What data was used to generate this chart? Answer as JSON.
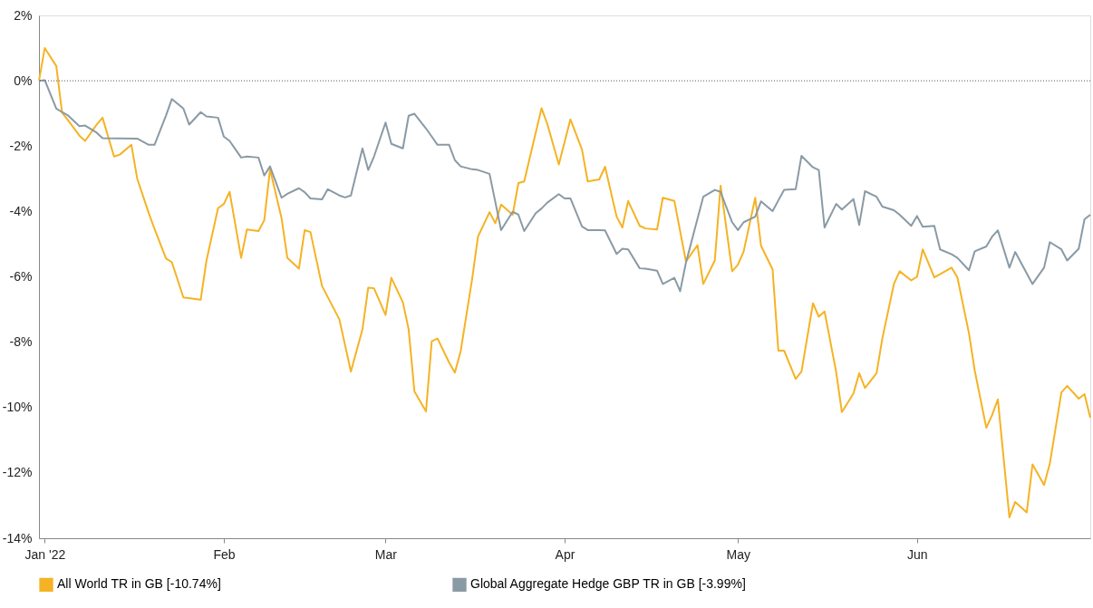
{
  "chart_data": {
    "type": "line",
    "legend": "bottom",
    "grid": false,
    "line_style": "solid",
    "marker": "none",
    "xlim": [
      "2021-12-31",
      "2022-07-01"
    ],
    "xticks": [
      {
        "value": "2022-01-01",
        "label": "Jan '22"
      },
      {
        "value": "2022-02-01",
        "label": "Feb"
      },
      {
        "value": "2022-03-01",
        "label": "Mar"
      },
      {
        "value": "2022-04-01",
        "label": "Apr"
      },
      {
        "value": "2022-05-01",
        "label": "May"
      },
      {
        "value": "2022-06-01",
        "label": "Jun"
      }
    ],
    "ylim": [
      -14,
      2
    ],
    "yticks": [
      {
        "value": 2,
        "label": "2%"
      },
      {
        "value": 0,
        "label": "0%"
      },
      {
        "value": -2,
        "label": "-2%"
      },
      {
        "value": -4,
        "label": "-4%"
      },
      {
        "value": -6,
        "label": "-6%"
      },
      {
        "value": -8,
        "label": "-8%"
      },
      {
        "value": -10,
        "label": "-10%"
      },
      {
        "value": -12,
        "label": "-12%"
      },
      {
        "value": -14,
        "label": "-14%"
      }
    ],
    "ref_lines": [
      {
        "axis": "y",
        "value": 0,
        "color": "#555555",
        "line_style": "dotted"
      }
    ],
    "series": [
      {
        "name": "All World TR in GB [-10.74%]",
        "color": "#f5b324",
        "x": [
          "2021-12-31",
          "2022-01-01",
          "2022-01-03",
          "2022-01-04",
          "2022-01-05",
          "2022-01-07",
          "2022-01-08",
          "2022-01-10",
          "2022-01-11",
          "2022-01-13",
          "2022-01-14",
          "2022-01-16",
          "2022-01-17",
          "2022-01-19",
          "2022-01-20",
          "2022-01-22",
          "2022-01-23",
          "2022-01-25",
          "2022-01-28",
          "2022-01-29",
          "2022-01-31",
          "2022-02-01",
          "2022-02-02",
          "2022-02-04",
          "2022-02-05",
          "2022-02-07",
          "2022-02-08",
          "2022-02-09",
          "2022-02-11",
          "2022-02-12",
          "2022-02-14",
          "2022-02-15",
          "2022-02-16",
          "2022-02-18",
          "2022-02-21",
          "2022-02-23",
          "2022-02-25",
          "2022-02-26",
          "2022-02-27",
          "2022-03-01",
          "2022-03-02",
          "2022-03-04",
          "2022-03-05",
          "2022-03-06",
          "2022-03-08",
          "2022-03-09",
          "2022-03-10",
          "2022-03-12",
          "2022-03-13",
          "2022-03-14",
          "2022-03-16",
          "2022-03-17",
          "2022-03-19",
          "2022-03-20",
          "2022-03-21",
          "2022-03-23",
          "2022-03-24",
          "2022-03-25",
          "2022-03-28",
          "2022-03-29",
          "2022-03-31",
          "2022-04-02",
          "2022-04-04",
          "2022-04-05",
          "2022-04-07",
          "2022-04-08",
          "2022-04-10",
          "2022-04-11",
          "2022-04-12",
          "2022-04-14",
          "2022-04-15",
          "2022-04-17",
          "2022-04-18",
          "2022-04-20",
          "2022-04-22",
          "2022-04-24",
          "2022-04-25",
          "2022-04-27",
          "2022-04-28",
          "2022-04-30",
          "2022-05-01",
          "2022-05-02",
          "2022-05-04",
          "2022-05-05",
          "2022-05-07",
          "2022-05-08",
          "2022-05-09",
          "2022-05-11",
          "2022-05-12",
          "2022-05-14",
          "2022-05-15",
          "2022-05-16",
          "2022-05-18",
          "2022-05-19",
          "2022-05-21",
          "2022-05-22",
          "2022-05-23",
          "2022-05-25",
          "2022-05-26",
          "2022-05-28",
          "2022-05-29",
          "2022-05-31",
          "2022-06-01",
          "2022-06-02",
          "2022-06-04",
          "2022-06-07",
          "2022-06-08",
          "2022-06-10",
          "2022-06-11",
          "2022-06-13",
          "2022-06-14",
          "2022-06-15",
          "2022-06-17",
          "2022-06-18",
          "2022-06-20",
          "2022-06-21",
          "2022-06-23",
          "2022-06-24",
          "2022-06-26",
          "2022-06-27",
          "2022-06-29",
          "2022-06-30",
          "2022-07-01"
        ],
        "values": [
          0.0,
          1.0,
          0.45,
          -0.98,
          -1.2,
          -1.68,
          -1.84,
          -1.34,
          -1.13,
          -2.32,
          -2.26,
          -1.96,
          -2.99,
          -4.05,
          -4.53,
          -5.44,
          -5.55,
          -6.63,
          -6.7,
          -5.5,
          -3.9,
          -3.77,
          -3.4,
          -5.42,
          -4.55,
          -4.6,
          -4.27,
          -2.71,
          -4.21,
          -5.42,
          -5.75,
          -4.57,
          -4.63,
          -6.28,
          -7.3,
          -8.9,
          -7.61,
          -6.33,
          -6.35,
          -7.17,
          -6.03,
          -6.78,
          -7.61,
          -9.51,
          -10.12,
          -7.97,
          -7.89,
          -8.62,
          -8.93,
          -8.28,
          -6.05,
          -4.77,
          -4.02,
          -4.36,
          -3.79,
          -4.1,
          -3.13,
          -3.08,
          -0.84,
          -1.32,
          -2.56,
          -1.18,
          -2.1,
          -3.08,
          -3.02,
          -2.63,
          -4.16,
          -4.49,
          -3.68,
          -4.44,
          -4.52,
          -4.55,
          -3.58,
          -3.68,
          -5.53,
          -5.03,
          -6.22,
          -5.5,
          -3.21,
          -5.83,
          -5.63,
          -5.22,
          -3.58,
          -5.05,
          -5.77,
          -8.26,
          -8.26,
          -9.12,
          -8.9,
          -6.81,
          -7.22,
          -7.06,
          -8.9,
          -10.14,
          -9.57,
          -8.95,
          -9.4,
          -8.95,
          -7.89,
          -6.22,
          -5.83,
          -6.11,
          -6.0,
          -5.16,
          -6.02,
          -5.72,
          -6.02,
          -7.73,
          -8.87,
          -10.62,
          -10.23,
          -9.75,
          -13.36,
          -12.89,
          -13.21,
          -11.74,
          -12.37,
          -11.71,
          -9.54,
          -9.34,
          -9.73,
          -9.59,
          -10.31
        ]
      },
      {
        "name": "Global Aggregate Hedge GBP TR in GB [-3.99%]",
        "color": "#8a9aa5",
        "x": [
          "2021-12-31",
          "2022-01-01",
          "2022-01-03",
          "2022-01-04",
          "2022-01-05",
          "2022-01-07",
          "2022-01-08",
          "2022-01-10",
          "2022-01-11",
          "2022-01-17",
          "2022-01-19",
          "2022-01-20",
          "2022-01-22",
          "2022-01-23",
          "2022-01-25",
          "2022-01-26",
          "2022-01-28",
          "2022-01-29",
          "2022-01-31",
          "2022-02-01",
          "2022-02-02",
          "2022-02-04",
          "2022-02-05",
          "2022-02-07",
          "2022-02-08",
          "2022-02-09",
          "2022-02-11",
          "2022-02-12",
          "2022-02-14",
          "2022-02-15",
          "2022-02-16",
          "2022-02-18",
          "2022-02-19",
          "2022-02-21",
          "2022-02-22",
          "2022-02-23",
          "2022-02-25",
          "2022-02-26",
          "2022-02-27",
          "2022-03-01",
          "2022-03-02",
          "2022-03-04",
          "2022-03-05",
          "2022-03-06",
          "2022-03-08",
          "2022-03-09",
          "2022-03-10",
          "2022-03-12",
          "2022-03-13",
          "2022-03-14",
          "2022-03-16",
          "2022-03-17",
          "2022-03-19",
          "2022-03-20",
          "2022-03-21",
          "2022-03-23",
          "2022-03-24",
          "2022-03-25",
          "2022-03-27",
          "2022-03-28",
          "2022-03-29",
          "2022-03-31",
          "2022-04-01",
          "2022-04-02",
          "2022-04-04",
          "2022-04-05",
          "2022-04-07",
          "2022-04-08",
          "2022-04-10",
          "2022-04-11",
          "2022-04-12",
          "2022-04-14",
          "2022-04-15",
          "2022-04-17",
          "2022-04-18",
          "2022-04-20",
          "2022-04-21",
          "2022-04-22",
          "2022-04-25",
          "2022-04-27",
          "2022-04-28",
          "2022-04-30",
          "2022-05-01",
          "2022-05-02",
          "2022-05-04",
          "2022-05-05",
          "2022-05-07",
          "2022-05-08",
          "2022-05-09",
          "2022-05-11",
          "2022-05-12",
          "2022-05-14",
          "2022-05-15",
          "2022-05-16",
          "2022-05-18",
          "2022-05-19",
          "2022-05-21",
          "2022-05-22",
          "2022-05-23",
          "2022-05-25",
          "2022-05-26",
          "2022-05-28",
          "2022-05-29",
          "2022-05-31",
          "2022-06-01",
          "2022-06-02",
          "2022-06-04",
          "2022-06-05",
          "2022-06-07",
          "2022-06-08",
          "2022-06-10",
          "2022-06-11",
          "2022-06-13",
          "2022-06-14",
          "2022-06-15",
          "2022-06-17",
          "2022-06-18",
          "2022-06-21",
          "2022-06-23",
          "2022-06-24",
          "2022-06-26",
          "2022-06-27",
          "2022-06-29",
          "2022-06-30",
          "2022-07-01"
        ],
        "values": [
          0.0,
          0.02,
          -0.85,
          -0.96,
          -1.06,
          -1.39,
          -1.37,
          -1.59,
          -1.76,
          -1.77,
          -1.96,
          -1.96,
          -1.06,
          -0.56,
          -0.85,
          -1.34,
          -0.96,
          -1.09,
          -1.13,
          -1.71,
          -1.84,
          -2.35,
          -2.32,
          -2.35,
          -2.9,
          -2.62,
          -3.58,
          -3.46,
          -3.29,
          -3.41,
          -3.6,
          -3.63,
          -3.32,
          -3.51,
          -3.57,
          -3.51,
          -2.07,
          -2.73,
          -2.32,
          -1.28,
          -1.93,
          -2.07,
          -1.07,
          -1.01,
          -1.46,
          -1.71,
          -1.96,
          -1.96,
          -2.43,
          -2.62,
          -2.71,
          -2.73,
          -2.85,
          -3.71,
          -4.57,
          -4.01,
          -4.1,
          -4.6,
          -4.05,
          -3.91,
          -3.73,
          -3.47,
          -3.6,
          -3.6,
          -4.46,
          -4.57,
          -4.57,
          -4.58,
          -5.3,
          -5.14,
          -5.16,
          -5.74,
          -5.75,
          -5.81,
          -6.22,
          -6.03,
          -6.44,
          -5.57,
          -3.55,
          -3.34,
          -3.4,
          -4.33,
          -4.57,
          -4.33,
          -4.16,
          -3.69,
          -3.99,
          -3.66,
          -3.34,
          -3.32,
          -2.3,
          -2.65,
          -2.73,
          -4.49,
          -3.77,
          -3.94,
          -3.62,
          -4.41,
          -3.38,
          -3.55,
          -3.85,
          -3.96,
          -4.1,
          -4.44,
          -4.14,
          -4.47,
          -4.44,
          -5.16,
          -5.31,
          -5.42,
          -5.8,
          -5.22,
          -5.07,
          -4.77,
          -4.58,
          -5.72,
          -5.24,
          -6.22,
          -5.72,
          -4.94,
          -5.16,
          -5.5,
          -5.14,
          -4.24,
          -4.1
        ]
      }
    ]
  }
}
